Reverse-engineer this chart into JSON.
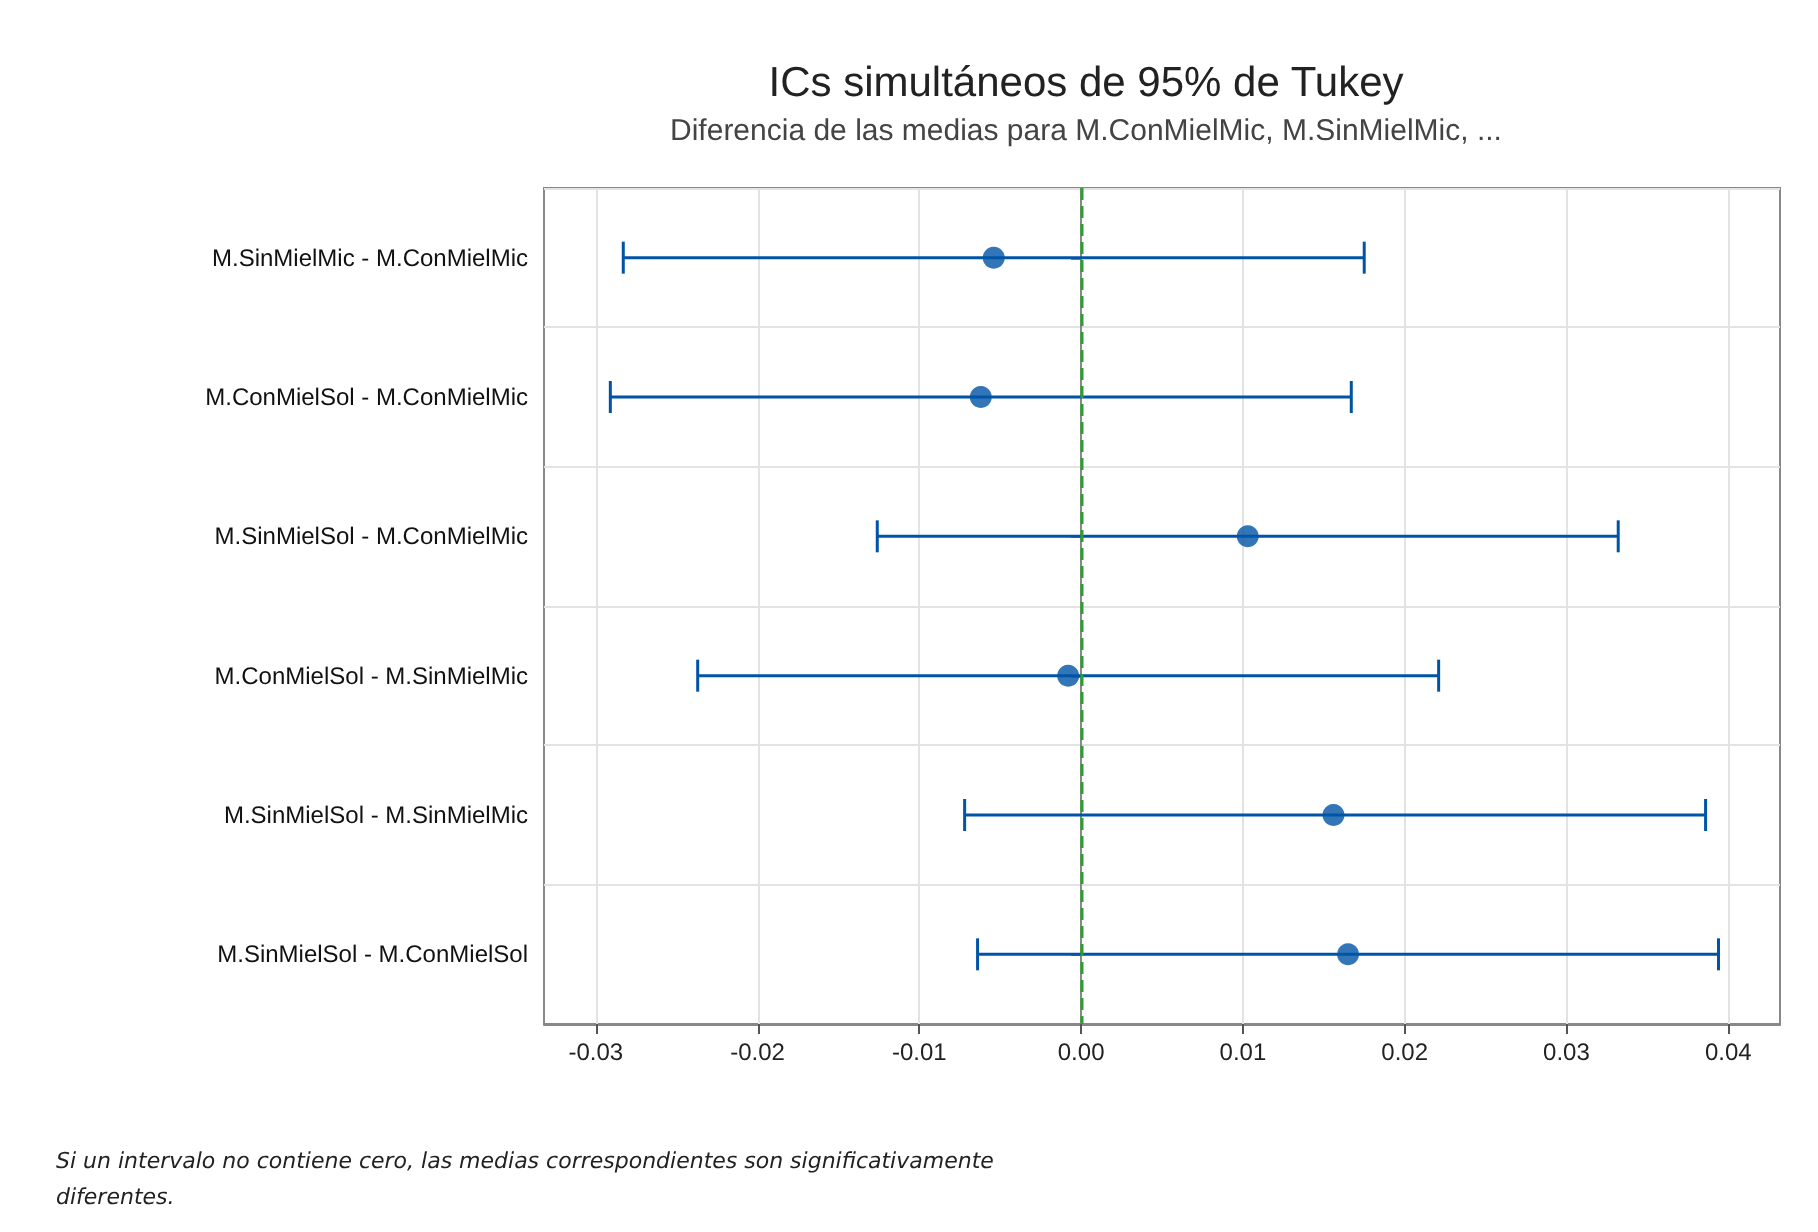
{
  "chart_data": {
    "type": "scatter",
    "title": "ICs simultáneos de 95% de Tukey",
    "subtitle": "Diferencia de las medias para M.ConMielMic, M.SinMielMic, ...",
    "categories": [
      "M.SinMielMic - M.ConMielMic",
      "M.ConMielSol - M.ConMielMic",
      "M.SinMielSol - M.ConMielMic",
      "M.ConMielSol - M.SinMielMic",
      "M.SinMielSol - M.SinMielMic",
      "M.SinMielSol - M.ConMielSol"
    ],
    "orientation": "horizontal",
    "values": [
      -0.0054,
      -0.0062,
      0.0103,
      -0.0008,
      0.0156,
      0.0165
    ],
    "errors": [
      [
        -0.0283,
        0.0175
      ],
      [
        -0.0291,
        0.0167
      ],
      [
        -0.0126,
        0.0332
      ],
      [
        -0.0237,
        0.0221
      ],
      [
        -0.0072,
        0.0386
      ],
      [
        -0.0064,
        0.0394
      ]
    ],
    "color": "#0054a6",
    "marker": "circle",
    "xlim": [
      -0.0332,
      0.0432
    ],
    "xticks": [
      -0.03,
      -0.02,
      -0.01,
      {
        "value": 0,
        "label": "0.00"
      },
      0.01,
      0.02,
      0.03,
      0.04
    ],
    "ref_lines": [
      {
        "axis": "x",
        "value": 0,
        "color": "#2ca02c",
        "line_style": "dashed"
      }
    ],
    "grid": true,
    "annotations": [
      "Si un intervalo no contiene cero, las medias correspondientes son significativamente diferentes."
    ]
  }
}
